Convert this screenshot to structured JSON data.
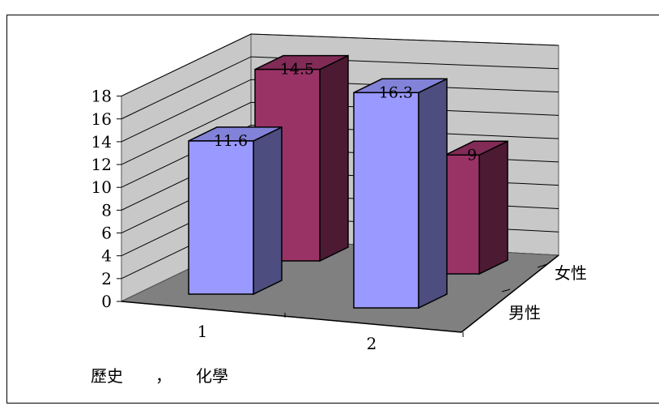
{
  "chart_data": {
    "type": "bar",
    "title": "",
    "xlabel": "歷史　　，　　化學",
    "ylabel": "",
    "ylim": [
      0,
      18
    ],
    "yticks": [
      "0",
      "2",
      "4",
      "6",
      "8",
      "10",
      "12",
      "14",
      "16",
      "18"
    ],
    "categories": [
      "1",
      "2"
    ],
    "depth_labels": [
      "女性",
      "男性"
    ],
    "series": [
      {
        "name": "男性",
        "values": [
          11.6,
          16.3
        ],
        "color": "#9999ff"
      },
      {
        "name": "女性",
        "values": [
          14.5,
          9
        ],
        "color": "#993366"
      }
    ],
    "data_labels": {
      "男性": [
        "11.6",
        "16.3"
      ],
      "女性": [
        "14.5",
        "9"
      ]
    },
    "grid": true,
    "legend": "none"
  }
}
